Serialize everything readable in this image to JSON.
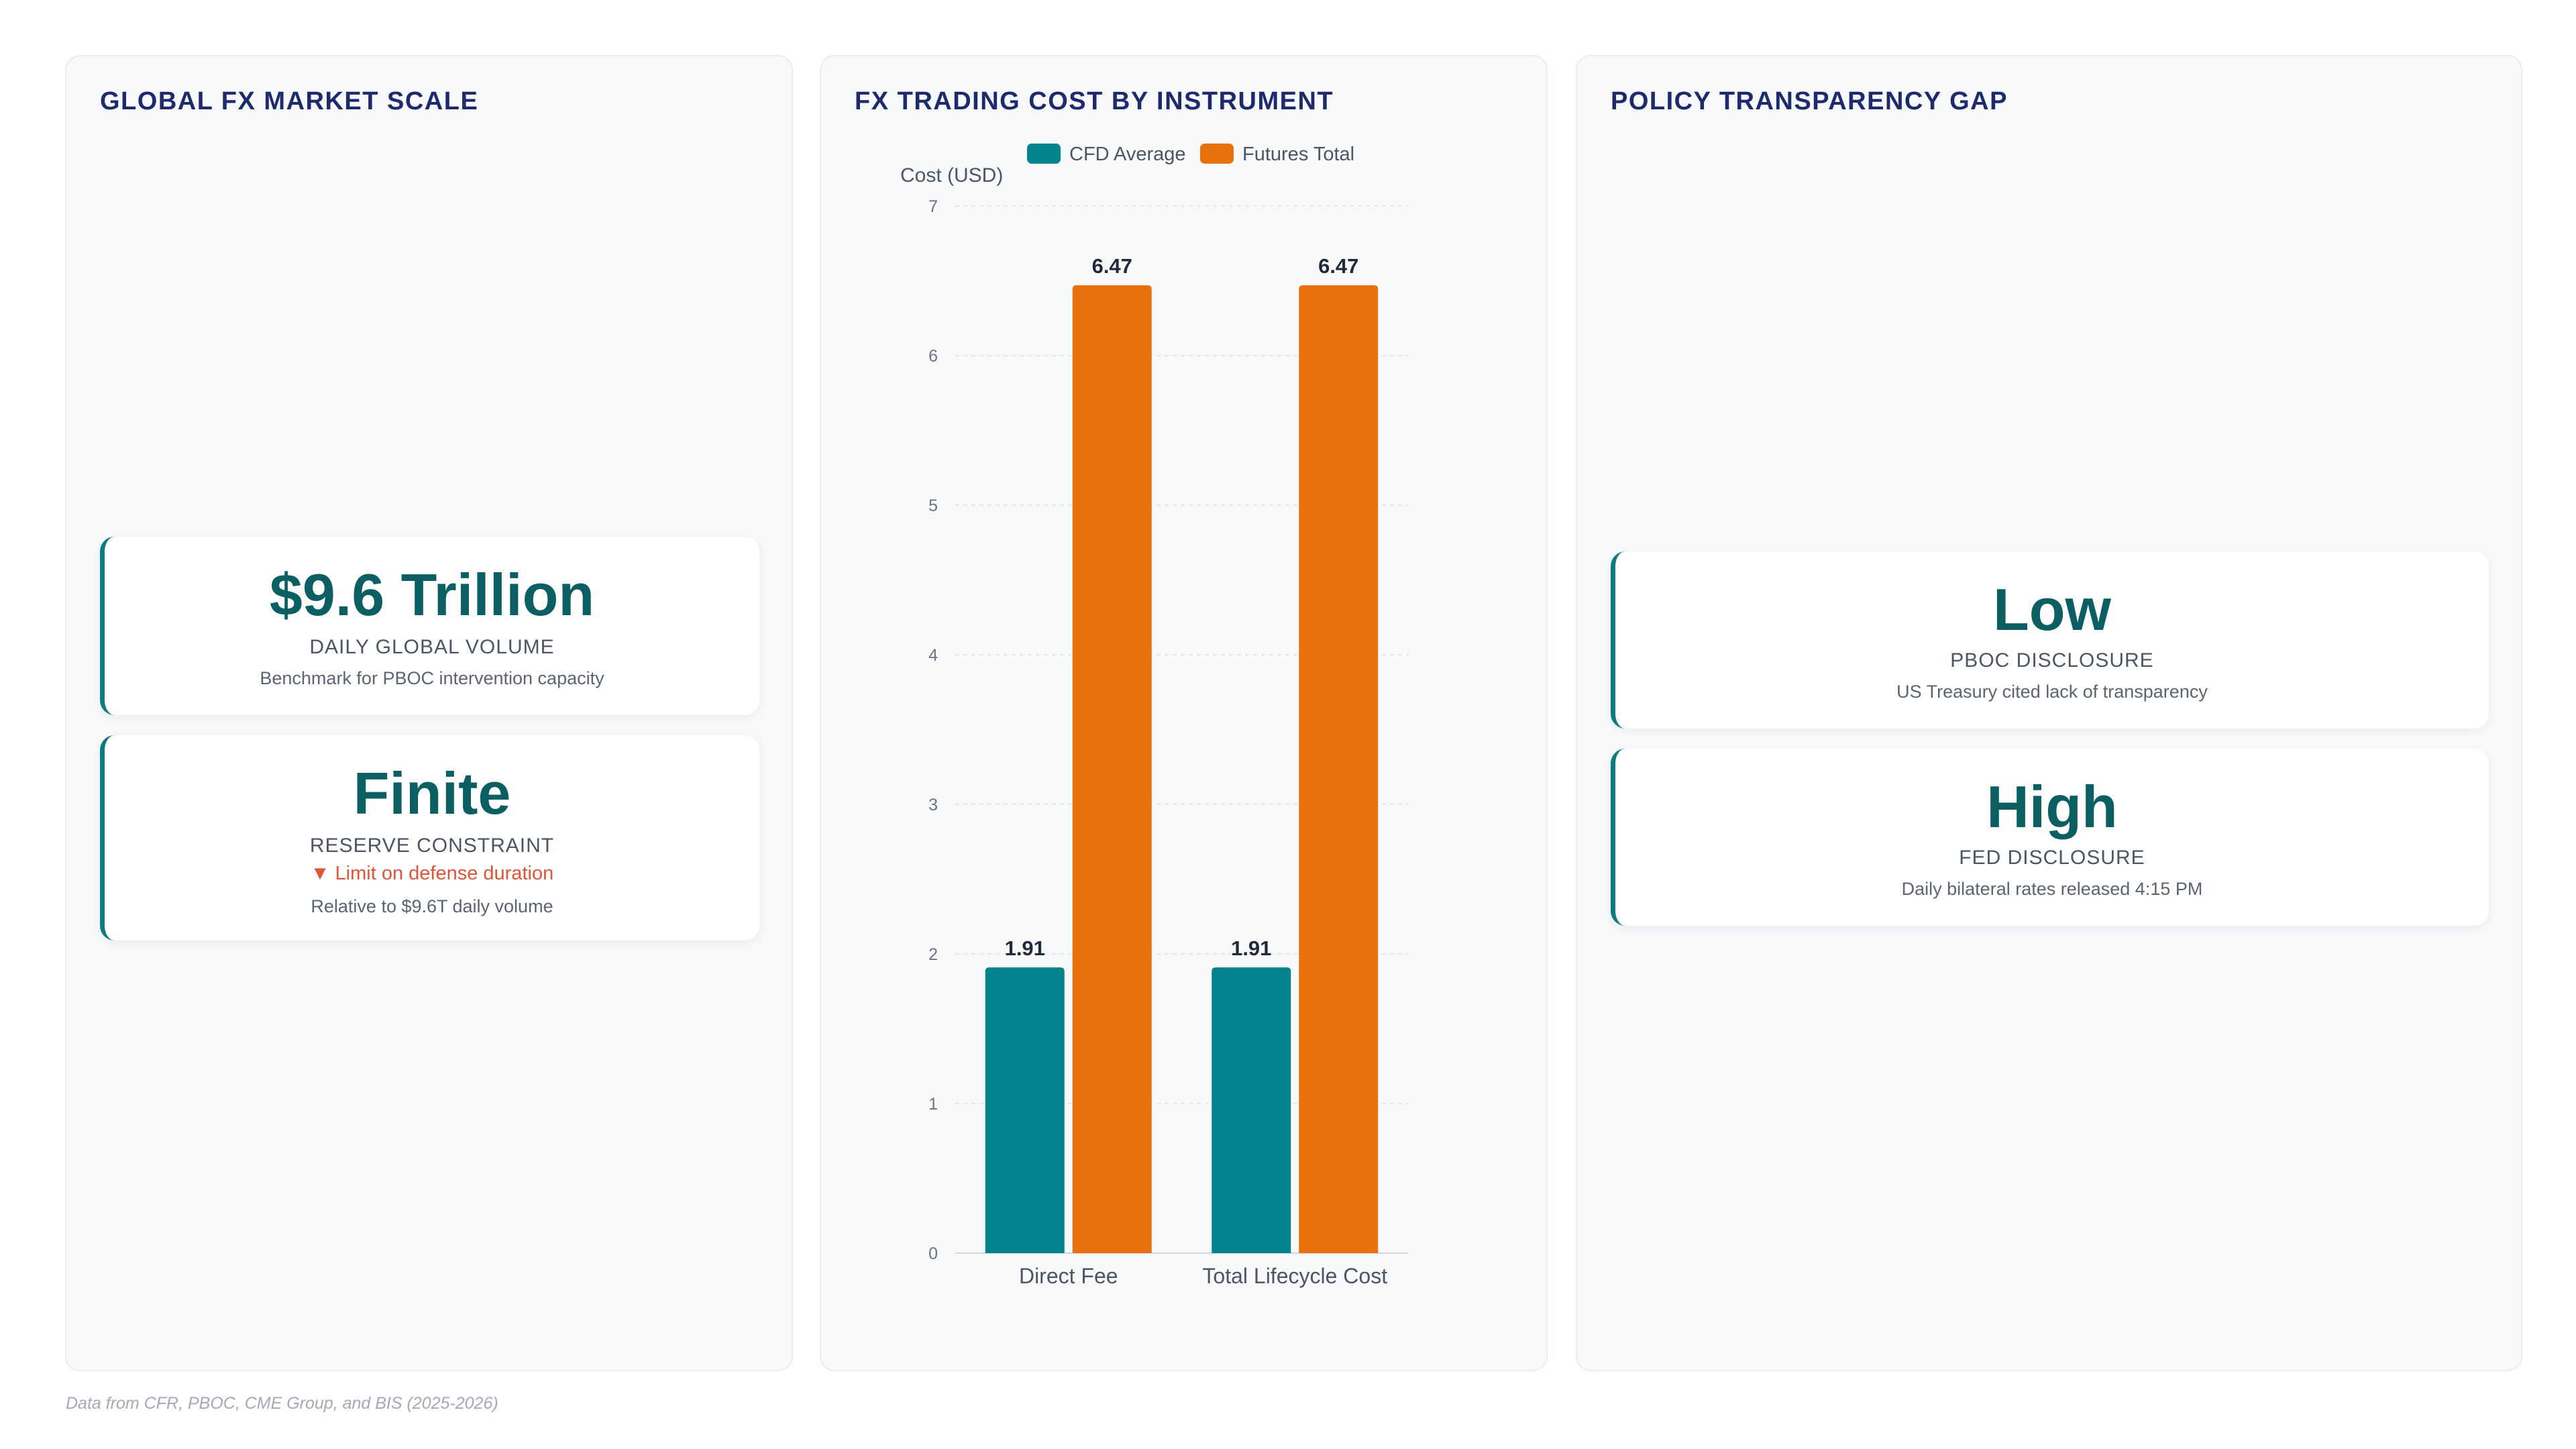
{
  "panels": {
    "market_scale": {
      "title": "GLOBAL FX MARKET SCALE",
      "cards": [
        {
          "value": "$9.6 Trillion",
          "label": "DAILY GLOBAL VOLUME",
          "note": "Benchmark for PBOC intervention capacity"
        },
        {
          "value": "Finite",
          "label": "RESERVE CONSTRAINT",
          "trend": "▼ Limit on defense duration",
          "note": "Relative to $9.6T daily volume"
        }
      ]
    },
    "trading_cost": {
      "title": "FX TRADING COST BY INSTRUMENT"
    },
    "transparency": {
      "title": "POLICY TRANSPARENCY GAP",
      "cards": [
        {
          "value": "Low",
          "label": "PBOC DISCLOSURE",
          "note": "US Treasury cited lack of transparency"
        },
        {
          "value": "High",
          "label": "FED DISCLOSURE",
          "note": "Daily bilateral rates released 4:15 PM"
        }
      ]
    }
  },
  "chart_data": {
    "type": "bar",
    "title": "FX TRADING COST BY INSTRUMENT",
    "categories": [
      "Direct Fee",
      "Total Lifecycle Cost"
    ],
    "series": [
      {
        "name": "CFD Average",
        "values": [
          1.91,
          1.91
        ],
        "color": "#00838a"
      },
      {
        "name": "Futures Total",
        "values": [
          6.47,
          6.47
        ],
        "color": "#e8700d"
      }
    ],
    "xlabel": "",
    "ylabel": "Cost (USD)",
    "ylim": [
      0,
      7
    ],
    "yticks": [
      0,
      1,
      2,
      3,
      4,
      5,
      6,
      7
    ],
    "grid": true,
    "legend_position": "top",
    "data_labels": true
  },
  "footer": {
    "source": "Data from CFR, PBOC, CME Group, and BIS (2025-2026)"
  },
  "colors": {
    "accent": "#0e7b80",
    "value_text": "#0b5f63",
    "title_text": "#1d2a6b",
    "trend_down": "#e0553a"
  }
}
